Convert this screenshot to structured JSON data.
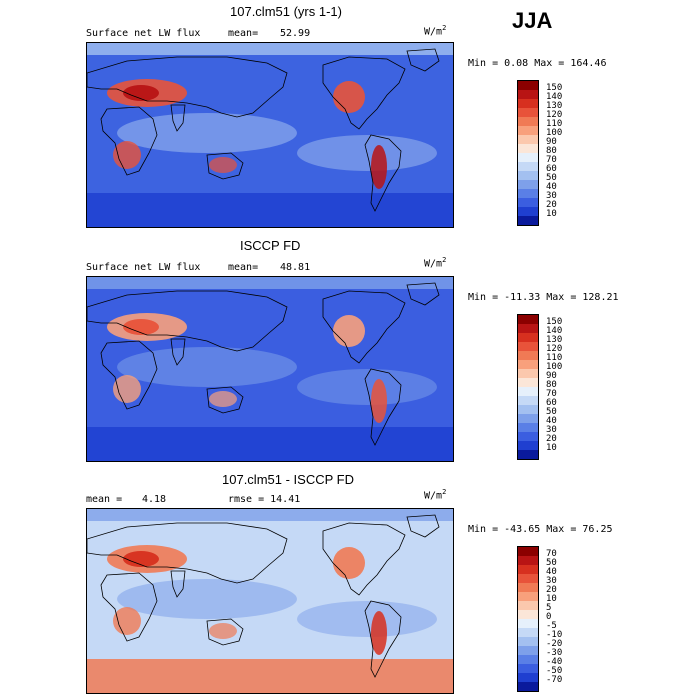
{
  "season": "JJA",
  "panels": [
    {
      "title": "107.clm51 (yrs 1-1)",
      "left_label": "Surface net LW flux",
      "mean_label": "mean=",
      "mean_value": "52.99",
      "units_main": "W/m",
      "units_sup": "2",
      "minmax": "Min =   0.08 Max = 164.46",
      "colorbar": {
        "levels": [
          "150",
          "140",
          "130",
          "120",
          "110",
          "100",
          "90",
          "80",
          "70",
          "60",
          "50",
          "40",
          "30",
          "20",
          "10"
        ],
        "colors": [
          "#8b0000",
          "#b81414",
          "#d7301f",
          "#e8533a",
          "#f07a55",
          "#f8a07c",
          "#fbc8ad",
          "#fbe6d8",
          "#e6f0fb",
          "#c5d9f6",
          "#a3c0f0",
          "#7ea0ea",
          "#5a7fe6",
          "#3b5ee0",
          "#1f3fd0",
          "#0a1a9c"
        ]
      },
      "map_colors": {
        "base": "#3d63e0",
        "warm": "#e8533a",
        "hot": "#b81414",
        "cool": "#a3c0f0",
        "deep": "#1f3fd0"
      }
    },
    {
      "title": "ISCCP FD",
      "left_label": "Surface net LW flux",
      "mean_label": "mean=",
      "mean_value": "48.81",
      "units_main": "W/m",
      "units_sup": "2",
      "minmax": "Min = -11.33 Max = 128.21",
      "colorbar": {
        "levels": [
          "150",
          "140",
          "130",
          "120",
          "110",
          "100",
          "90",
          "80",
          "70",
          "60",
          "50",
          "40",
          "30",
          "20",
          "10"
        ],
        "colors": [
          "#8b0000",
          "#b81414",
          "#d7301f",
          "#e8533a",
          "#f07a55",
          "#f8a07c",
          "#fbc8ad",
          "#fbe6d8",
          "#e6f0fb",
          "#c5d9f6",
          "#a3c0f0",
          "#7ea0ea",
          "#5a7fe6",
          "#3b5ee0",
          "#1f3fd0",
          "#0a1a9c"
        ]
      },
      "map_colors": {
        "base": "#3b5ee0",
        "warm": "#f8a07c",
        "hot": "#e8533a",
        "cool": "#7ea0ea",
        "deep": "#1f3fd0"
      }
    },
    {
      "title": "107.clm51 - ISCCP FD",
      "left_label": "mean =",
      "mean_label": "4.18",
      "mean_value": "rmse =  14.41",
      "units_main": "W/m",
      "units_sup": "2",
      "minmax": "Min = -43.65 Max =  76.25",
      "colorbar": {
        "levels": [
          "70",
          "50",
          "40",
          "30",
          "20",
          "10",
          "5",
          "0",
          "-5",
          "-10",
          "-20",
          "-30",
          "-40",
          "-50",
          "-70"
        ],
        "colors": [
          "#8b0000",
          "#b81414",
          "#d7301f",
          "#e8533a",
          "#f07a55",
          "#f8a07c",
          "#fbc8ad",
          "#fbe6d8",
          "#e6f0fb",
          "#c5d9f6",
          "#a3c0f0",
          "#7ea0ea",
          "#5a7fe6",
          "#3b5ee0",
          "#1f3fd0",
          "#0a1a9c"
        ]
      },
      "map_colors": {
        "base": "#c5d9f6",
        "warm": "#f07a55",
        "hot": "#d7301f",
        "cool": "#7ea0ea",
        "deep": "#3b5ee0"
      }
    }
  ]
}
